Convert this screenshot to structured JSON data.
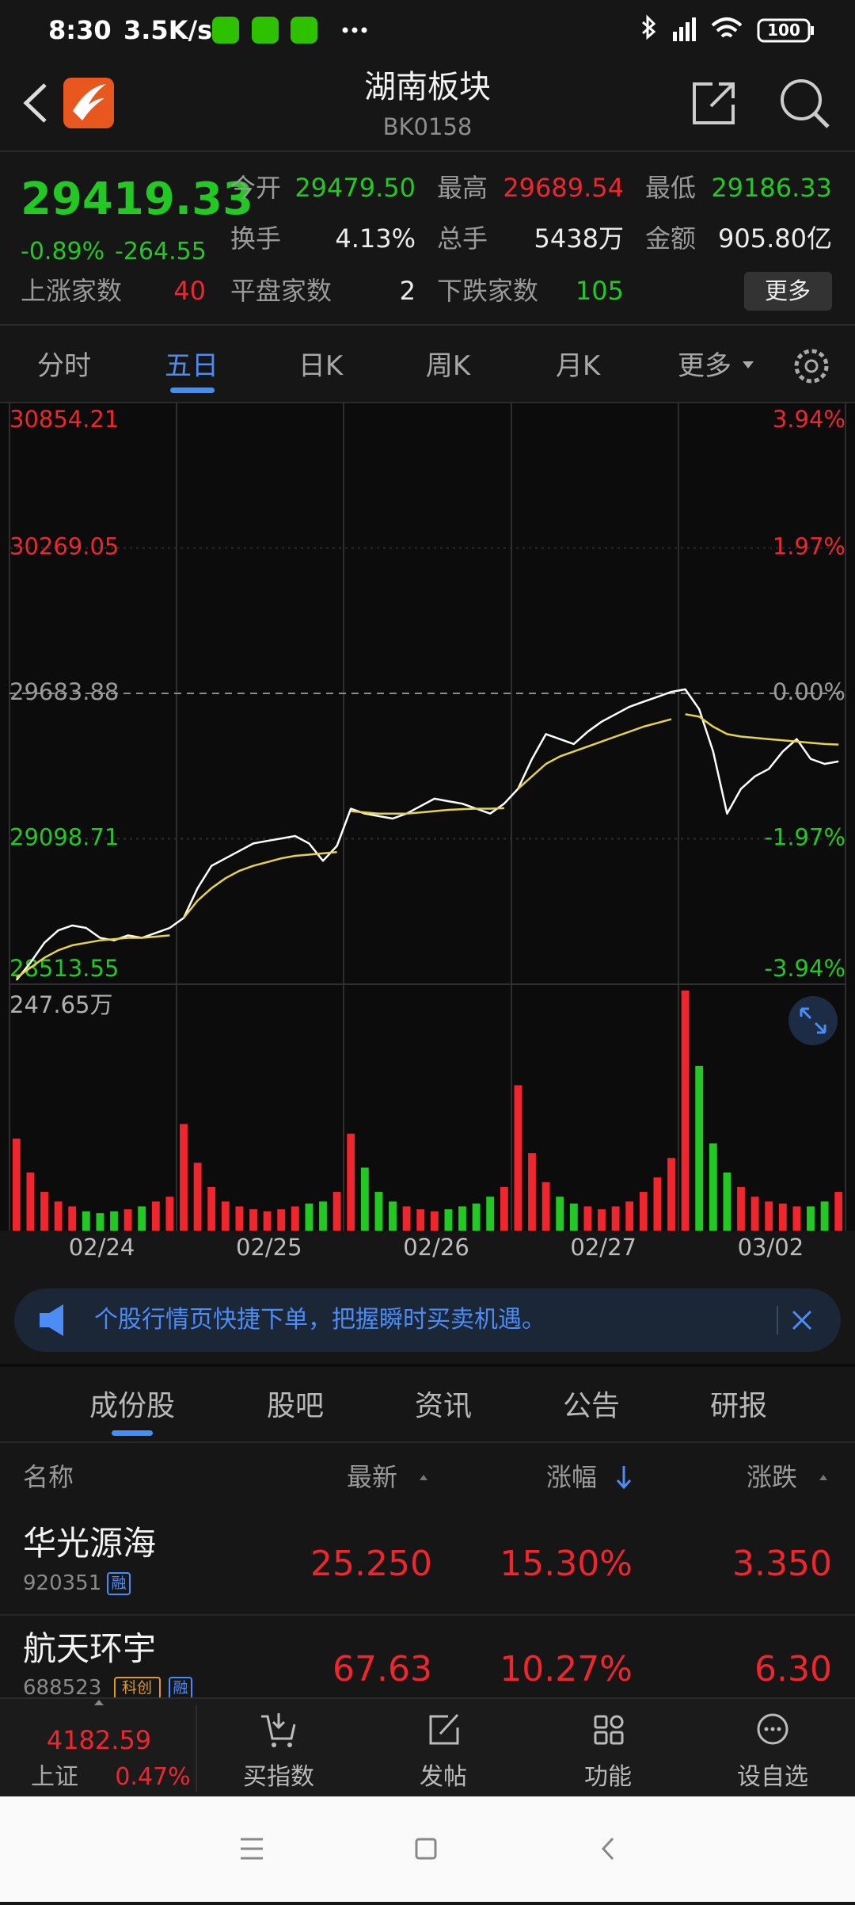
{
  "status_bar": {
    "time": "8:30",
    "speed": "3.5K/s",
    "battery": "100"
  },
  "header": {
    "title": "湖南板块",
    "code": "BK0158"
  },
  "quote": {
    "price": "29419.33",
    "change_pct": "-0.89%",
    "change": "-264.55",
    "stats": [
      {
        "label": "今开",
        "value": "29479.50"
      },
      {
        "label": "最高",
        "value": "29689.54"
      },
      {
        "label": "最低",
        "value": "29186.33"
      },
      {
        "label": "换手",
        "value": "4.13%"
      },
      {
        "label": "总手",
        "value": "5438万"
      },
      {
        "label": "金额",
        "value": "905.80亿"
      },
      {
        "label": "上涨家数",
        "value": "40"
      },
      {
        "label": "平盘家数",
        "value": "2"
      },
      {
        "label": "下跌家数",
        "value": "105"
      }
    ],
    "more_button": "更多"
  },
  "tabs": [
    "分时",
    "五日",
    "日K",
    "周K",
    "月K",
    "更多"
  ],
  "chart": {
    "type": "line",
    "categories": [
      "02/24",
      "02/25",
      "02/26",
      "02/27",
      "03/02"
    ],
    "ylim": [
      28513.55,
      30854.21
    ],
    "yticks": [
      30854.21,
      30269.05,
      29683.88,
      29098.71,
      28513.55
    ],
    "y2lim": [
      -3.94,
      3.94
    ],
    "y2ticks": [
      {
        "value": 3.94,
        "label": "3.94%"
      },
      {
        "value": 1.97,
        "label": "1.97%"
      },
      {
        "value": 0,
        "label": "0.00%"
      },
      {
        "value": -1.97,
        "label": "-1.97%"
      },
      {
        "value": -3.94,
        "label": "-3.94%"
      }
    ],
    "series": [
      {
        "color": "#ffffff",
        "values": [
          28530,
          28600,
          28680,
          28730,
          28750,
          28740,
          28700,
          28690,
          28710,
          28700,
          28720,
          28740,
          28780,
          28900,
          28990,
          29020,
          29050,
          29080,
          29090,
          29100,
          29110,
          29080,
          29010,
          29070,
          29220,
          29200,
          29190,
          29180,
          29200,
          29230,
          29260,
          29250,
          29240,
          29220,
          29200,
          29240,
          29300,
          29420,
          29520,
          29500,
          29480,
          29530,
          29570,
          29600,
          29630,
          29650,
          29670,
          29690,
          29700,
          29620,
          29450,
          29200,
          29300,
          29350,
          29380,
          29450,
          29500,
          29420,
          29400,
          29410
        ]
      },
      {
        "color": "#e6d34a",
        "values": [
          28540,
          28580,
          28620,
          28650,
          28670,
          28680,
          28690,
          28695,
          28700,
          28700,
          28705,
          28710,
          28780,
          28850,
          28900,
          28940,
          28970,
          28990,
          29005,
          29020,
          29030,
          29035,
          29040,
          29045,
          29210,
          29205,
          29200,
          29200,
          29200,
          29205,
          29210,
          29215,
          29218,
          29220,
          29220,
          29222,
          29300,
          29350,
          29400,
          29430,
          29450,
          29470,
          29490,
          29510,
          29530,
          29550,
          29565,
          29580,
          29600,
          29590,
          29550,
          29520,
          29510,
          29505,
          29500,
          29495,
          29490,
          29485,
          29480,
          29478
        ]
      }
    ],
    "volume": {
      "ylim": [
        0,
        247.65
      ],
      "yticks": [
        {
          "value": 247.65,
          "label": "247.65万"
        }
      ],
      "values": [
        95,
        60,
        40,
        30,
        25,
        20,
        18,
        20,
        22,
        25,
        30,
        35,
        110,
        70,
        45,
        30,
        25,
        22,
        20,
        22,
        25,
        28,
        30,
        40,
        100,
        65,
        40,
        30,
        25,
        22,
        20,
        22,
        25,
        28,
        35,
        45,
        150,
        80,
        50,
        35,
        28,
        25,
        22,
        25,
        30,
        40,
        55,
        75,
        247.65,
        170,
        90,
        60,
        45,
        35,
        30,
        28,
        25,
        25,
        30,
        40
      ]
    },
    "up_color": "#f0252d",
    "down_color": "#22c922"
  },
  "banner": {
    "text": "个股行情页快捷下单，把握瞬时买卖机遇。"
  },
  "sub_tabs": [
    "成份股",
    "股吧",
    "资讯",
    "公告",
    "研报"
  ],
  "table": {
    "columns": [
      "名称",
      "最新",
      "涨幅",
      "涨跌"
    ],
    "rows": [
      {
        "name": "华光源海",
        "code": "920351",
        "tags": [
          "融"
        ],
        "latest": "25.250",
        "change_pct": "15.30%",
        "change": "3.350"
      },
      {
        "name": "航天环宇",
        "code": "688523",
        "tags": [
          "科创",
          "融"
        ],
        "latest": "67.63",
        "change_pct": "10.27%",
        "change": "6.30"
      }
    ]
  },
  "bottom_bar": {
    "index_value": "4182.59",
    "index_name": "上证",
    "index_pct": "0.47%",
    "items": [
      "买指数",
      "发帖",
      "功能",
      "设自选"
    ]
  }
}
